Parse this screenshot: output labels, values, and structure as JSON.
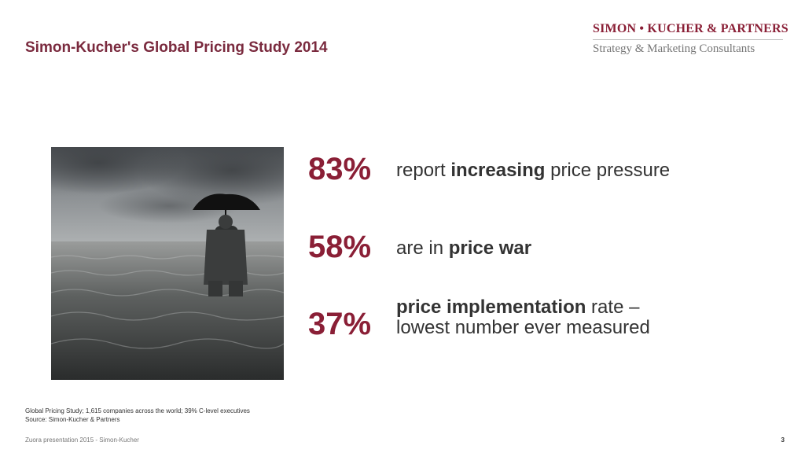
{
  "slide": {
    "title": "Simon-Kucher's Global Pricing Study 2014",
    "page_number": "3"
  },
  "logo": {
    "line1": "SIMON • KUCHER & PARTNERS",
    "line2": "Strategy & Marketing Consultants"
  },
  "photo": {
    "description_icon": "man-with-umbrella-in-flooded-sea-photo"
  },
  "stats": [
    {
      "value": "83%",
      "pre": "report ",
      "bold": "increasing",
      "post": " price pressure"
    },
    {
      "value": "58%",
      "pre": "are in ",
      "bold": "price war",
      "post": ""
    },
    {
      "value": "37%",
      "bold": "price implementation",
      "post": " rate –",
      "line2": "lowest number ever measured"
    }
  ],
  "footnote": {
    "line1": "Global Pricing Study; 1,615 companies across the world; 39% C-level executives",
    "line2": "Source: Simon-Kucher & Partners"
  },
  "footer": {
    "left": "Zuora presentation 2015 - Simon-Kucher"
  },
  "colors": {
    "accent": "#8a1f36",
    "title": "#7a2a3e"
  }
}
